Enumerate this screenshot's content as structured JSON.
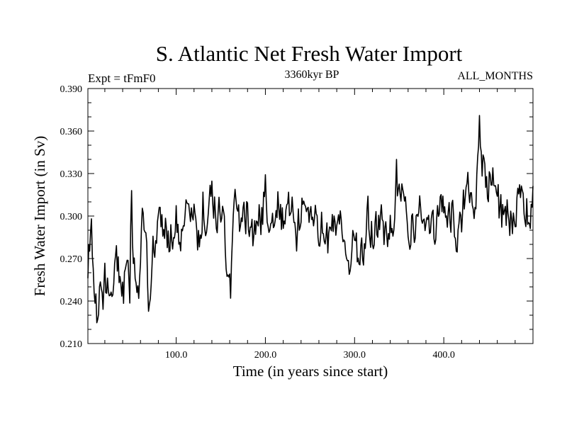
{
  "chart_data": {
    "type": "line",
    "title": "S. Atlantic Net Fresh Water Import",
    "subtitle": "3360kyr BP",
    "left_label": "Expt = tFmF0",
    "right_label": "ALL_MONTHS",
    "xlabel": "Time (in years since start)",
    "ylabel": "Fresh Water Import (in Sv)",
    "xlim": [
      1,
      500
    ],
    "ylim": [
      0.21,
      0.39
    ],
    "x_ticks": [
      100,
      200,
      300,
      400
    ],
    "x_tick_labels": [
      "100.0",
      "200.0",
      "300.0",
      "400.0"
    ],
    "y_ticks": [
      0.21,
      0.24,
      0.27,
      0.3,
      0.33,
      0.36,
      0.39
    ],
    "y_tick_labels": [
      "0.210",
      "0.240",
      "0.270",
      "0.300",
      "0.330",
      "0.360",
      "0.390"
    ],
    "grid": false,
    "series": [
      {
        "name": "Fresh Water Import",
        "color": "#000000",
        "anchors_x": [
          1,
          3,
          5,
          7,
          9,
          11,
          14,
          17,
          20,
          24,
          28,
          32,
          36,
          40,
          44,
          48,
          50,
          52,
          55,
          58,
          62,
          66,
          70,
          74,
          78,
          82,
          86,
          90,
          95,
          100,
          105,
          110,
          115,
          120,
          125,
          130,
          135,
          140,
          145,
          150,
          155,
          160,
          165,
          170,
          175,
          180,
          185,
          190,
          195,
          200,
          205,
          210,
          215,
          220,
          225,
          230,
          235,
          240,
          245,
          250,
          255,
          260,
          265,
          270,
          275,
          280,
          285,
          290,
          295,
          300,
          305,
          310,
          315,
          320,
          325,
          330,
          335,
          340,
          345,
          350,
          355,
          360,
          365,
          370,
          375,
          380,
          385,
          390,
          395,
          400,
          405,
          410,
          415,
          420,
          425,
          430,
          435,
          440,
          445,
          450,
          455,
          460,
          465,
          470,
          475,
          480,
          485,
          490,
          495,
          500
        ],
        "anchors_y": [
          0.26,
          0.28,
          0.295,
          0.255,
          0.24,
          0.228,
          0.25,
          0.24,
          0.255,
          0.245,
          0.26,
          0.268,
          0.255,
          0.245,
          0.26,
          0.25,
          0.318,
          0.26,
          0.27,
          0.25,
          0.29,
          0.27,
          0.24,
          0.285,
          0.275,
          0.305,
          0.295,
          0.29,
          0.285,
          0.3,
          0.28,
          0.315,
          0.29,
          0.3,
          0.28,
          0.31,
          0.29,
          0.32,
          0.3,
          0.305,
          0.285,
          0.245,
          0.31,
          0.3,
          0.295,
          0.305,
          0.285,
          0.3,
          0.295,
          0.32,
          0.29,
          0.3,
          0.31,
          0.295,
          0.3,
          0.315,
          0.29,
          0.3,
          0.305,
          0.3,
          0.31,
          0.29,
          0.3,
          0.28,
          0.3,
          0.295,
          0.3,
          0.28,
          0.265,
          0.29,
          0.27,
          0.275,
          0.3,
          0.285,
          0.29,
          0.3,
          0.28,
          0.3,
          0.305,
          0.33,
          0.31,
          0.3,
          0.29,
          0.295,
          0.31,
          0.3,
          0.28,
          0.29,
          0.3,
          0.31,
          0.3,
          0.305,
          0.285,
          0.3,
          0.32,
          0.31,
          0.3,
          0.345,
          0.33,
          0.32,
          0.34,
          0.31,
          0.3,
          0.305,
          0.295,
          0.3,
          0.31,
          0.3,
          0.305,
          0.31
        ],
        "noise_amplitude": 0.018,
        "noise_seed": 33601,
        "points": 500
      }
    ],
    "notable_points": [
      {
        "x": 12,
        "y": 0.227
      },
      {
        "x": 50,
        "y": 0.318
      },
      {
        "x": 161,
        "y": 0.242
      },
      {
        "x": 347,
        "y": 0.34
      },
      {
        "x": 440,
        "y": 0.371
      }
    ]
  }
}
